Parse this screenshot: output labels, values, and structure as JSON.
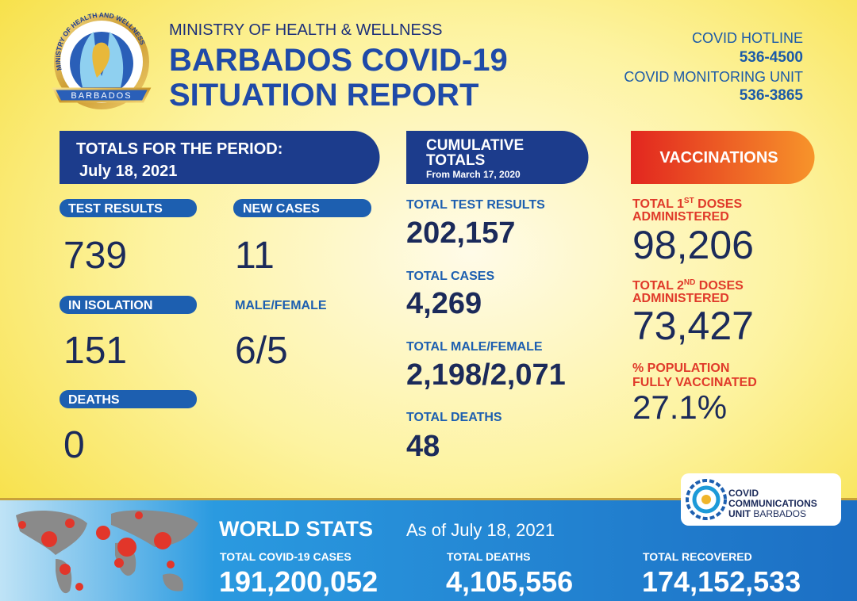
{
  "header": {
    "ministry": "MINISTRY OF HEALTH & WELLNESS",
    "title_line1": "BARBADOS COVID-19",
    "title_line2": "SITUATION REPORT",
    "logo_ring": "MINISTRY OF HEALTH AND WELLNESS",
    "logo_ribbon": "BARBADOS"
  },
  "contacts": [
    {
      "label": "COVID HOTLINE",
      "number": "536-4500"
    },
    {
      "label": "COVID MONITORING UNIT",
      "number": "536-3865"
    }
  ],
  "period": {
    "title": "TOTALS FOR THE PERIOD:",
    "date": "July 18, 2021",
    "items": [
      {
        "label": "TEST RESULTS",
        "value": "739"
      },
      {
        "label": "NEW CASES",
        "value": "11"
      },
      {
        "label": "IN ISOLATION",
        "value": "151"
      },
      {
        "label": "MALE/FEMALE",
        "value": "6/5"
      },
      {
        "label": "DEATHS",
        "value": "0"
      }
    ]
  },
  "cumulative": {
    "title_line1": "CUMULATIVE",
    "title_line2": "TOTALS",
    "since": "From March 17, 2020",
    "items": [
      {
        "label": "TOTAL TEST RESULTS",
        "value": "202,157"
      },
      {
        "label": "TOTAL CASES",
        "value": "4,269"
      },
      {
        "label": "TOTAL MALE/FEMALE",
        "value": "2,198/2,071"
      },
      {
        "label": "TOTAL DEATHS",
        "value": "48"
      }
    ]
  },
  "vaccinations": {
    "title": "VACCINATIONS",
    "items": [
      {
        "label_main": "TOTAL 1",
        "label_sup": "ST",
        "label_rest": " DOSES",
        "label_line2": "ADMINISTERED",
        "value": "98,206"
      },
      {
        "label_main": "TOTAL 2",
        "label_sup": "ND",
        "label_rest": " DOSES",
        "label_line2": "ADMINISTERED",
        "value": "73,427"
      },
      {
        "label_main": "% POPULATION",
        "label_line2": "FULLY VACCINATED",
        "value": "27.1%"
      }
    ]
  },
  "comm_unit": {
    "line1": "COVID",
    "line2": "COMMUNICATIONS",
    "line3": "UNIT",
    "line3_rest": " BARBADOS"
  },
  "world": {
    "title": "WORLD STATS",
    "as_of": "As of July 18, 2021",
    "items": [
      {
        "label": "TOTAL COVID-19 CASES",
        "value": "191,200,052"
      },
      {
        "label": "TOTAL DEATHS",
        "value": "4,105,556"
      },
      {
        "label": "TOTAL RECOVERED",
        "value": "174,152,533"
      }
    ]
  }
}
